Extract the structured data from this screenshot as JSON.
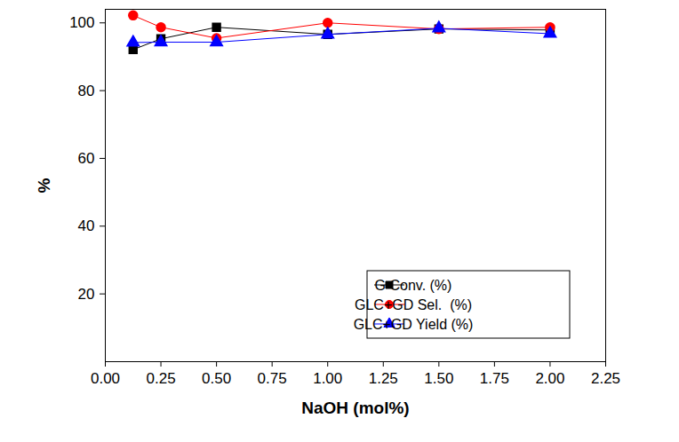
{
  "chart_data": {
    "type": "line",
    "x_label": "NaOH (mol%)",
    "y_label": "%",
    "x": [
      0.125,
      0.25,
      0.5,
      1.0,
      1.5,
      2.0
    ],
    "series": [
      {
        "name": "G Conv. (%)",
        "color": "#000000",
        "marker": "square",
        "values": [
          92.1,
          95.3,
          98.7,
          96.6,
          98.2,
          97.9
        ]
      },
      {
        "name": "GLC+GD Sel.  (%)",
        "color": "#ff0000",
        "marker": "circle",
        "values": [
          102.2,
          98.7,
          95.5,
          100.0,
          98.2,
          98.7
        ]
      },
      {
        "name": "GLC+GD Yield (%)",
        "color": "#0000ff",
        "marker": "triangle",
        "values": [
          94.2,
          94.3,
          94.3,
          96.6,
          98.4,
          96.8
        ]
      }
    ],
    "xlim": [
      0,
      2.25
    ],
    "xticks": [
      {
        "value": 0,
        "label": "0.00"
      },
      {
        "value": 0.25,
        "label": "0.25"
      },
      {
        "value": 0.5,
        "label": "0.50"
      },
      {
        "value": 0.75,
        "label": "0.75"
      },
      {
        "value": 1.0,
        "label": "1.00"
      },
      {
        "value": 1.25,
        "label": "1.25"
      },
      {
        "value": 1.5,
        "label": "1.50"
      },
      {
        "value": 1.75,
        "label": "1.75"
      },
      {
        "value": 2.0,
        "label": "2.00"
      },
      {
        "value": 2.25,
        "label": "2.25"
      }
    ],
    "ylim": [
      0,
      104
    ],
    "yticks": [
      20,
      40,
      60,
      80,
      100
    ],
    "grid": false,
    "legend": "lower right"
  }
}
